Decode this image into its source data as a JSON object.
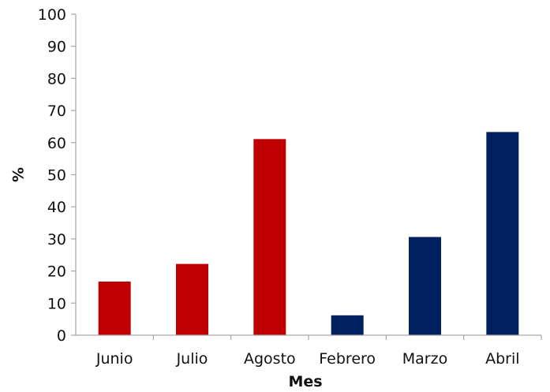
{
  "chart_data": {
    "type": "bar",
    "title": "",
    "xlabel": "Mes",
    "ylabel": "%",
    "ylim": [
      0,
      100
    ],
    "yticks": [
      0,
      10,
      20,
      30,
      40,
      50,
      60,
      70,
      80,
      90,
      100
    ],
    "categories": [
      "Junio",
      "Julio",
      "Agosto",
      "Febrero",
      "Marzo",
      "Abril"
    ],
    "values": [
      16.7,
      22.2,
      61.1,
      6.2,
      30.6,
      63.3
    ],
    "bar_colors": [
      "#c00000",
      "#c00000",
      "#c00000",
      "#002060",
      "#002060",
      "#002060"
    ],
    "grid": false,
    "legend": "none"
  }
}
